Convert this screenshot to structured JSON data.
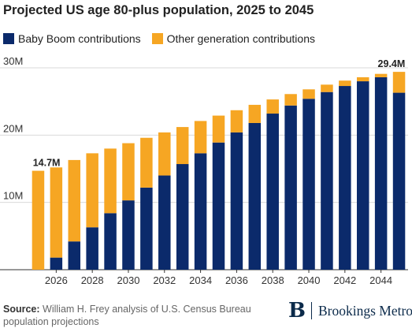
{
  "colors": {
    "baby_boom": "#0b2a6b",
    "other": "#f6a623",
    "grid": "#d9d9d9",
    "axis_text": "#333333"
  },
  "legend": {
    "baby_boom_label": "Baby Boom contributions",
    "other_label": "Other generation contributions"
  },
  "footer": {
    "source_label": "Source:",
    "source_text": "William H. Frey analysis of U.S. Census Bureau population projections",
    "brand_logo": "B",
    "brand_name": "Brookings Metro"
  },
  "chart_data": {
    "type": "bar",
    "stacked": true,
    "title": "Projected US age 80-plus population, 2025 to 2045",
    "categories": [
      "2025",
      "2026",
      "2027",
      "2028",
      "2029",
      "2030",
      "2031",
      "2032",
      "2033",
      "2034",
      "2035",
      "2036",
      "2037",
      "2038",
      "2039",
      "2040",
      "2041",
      "2042",
      "2043",
      "2044",
      "2045"
    ],
    "x_tick_labels": [
      "2026",
      "2028",
      "2030",
      "2032",
      "2034",
      "2036",
      "2038",
      "2040",
      "2042",
      "2044"
    ],
    "series": [
      {
        "name": "Baby Boom contributions",
        "color": "#0b2a6b",
        "values": [
          0.0,
          1.8,
          4.2,
          6.3,
          8.4,
          10.3,
          12.2,
          14.0,
          15.7,
          17.3,
          18.9,
          20.4,
          21.8,
          23.2,
          24.4,
          25.4,
          26.4,
          27.3,
          28.0,
          28.6,
          26.3
        ]
      },
      {
        "name": "Other generation contributions",
        "color": "#f6a623",
        "values": [
          14.7,
          13.4,
          12.1,
          11.0,
          9.6,
          8.5,
          7.4,
          6.4,
          5.5,
          4.8,
          4.0,
          3.3,
          2.7,
          2.1,
          1.7,
          1.4,
          1.1,
          0.8,
          0.6,
          0.5,
          3.1
        ]
      }
    ],
    "totals": [
      14.7,
      15.2,
      16.3,
      17.3,
      18.0,
      18.8,
      19.6,
      20.4,
      21.2,
      22.1,
      22.9,
      23.7,
      24.5,
      25.3,
      26.1,
      26.8,
      27.5,
      28.1,
      28.6,
      29.1,
      29.4
    ],
    "annotations": [
      {
        "category": "2025",
        "text": "14.7M"
      },
      {
        "category": "2045",
        "text": "29.4M"
      }
    ],
    "y_ticks": [
      10,
      20,
      30
    ],
    "y_tick_labels": [
      "10M",
      "20M",
      "30M"
    ],
    "ylim": [
      0,
      30
    ],
    "grid": true,
    "legend_position": "top-left"
  }
}
